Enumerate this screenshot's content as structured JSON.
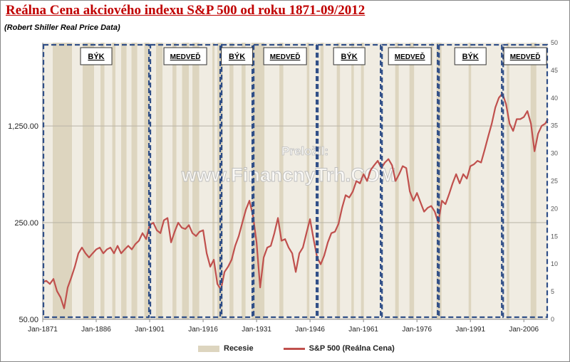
{
  "title": "Reálna Cena akciového indexu S&P 500 od roku 1871-09/2012",
  "subtitle": "(Robert Shiller Real Price Data)",
  "watermark": {
    "line1": "Preložil:",
    "line2": "www.FinancnyTrh.COM"
  },
  "colors": {
    "series": "#c0504d",
    "recession": "#ddd5bf",
    "plot_bg": "#f0ece2",
    "dash_box": "#2f4e87",
    "title": "#c00000"
  },
  "chart_data": {
    "type": "line",
    "title": "Reálna Cena akciového indexu S&P 500 od roku 1871-09/2012",
    "y_scale": "log",
    "ylim": [
      50,
      5000
    ],
    "yticks": [
      {
        "value": 50,
        "label": "50.00"
      },
      {
        "value": 250,
        "label": "250.00"
      },
      {
        "value": 1250,
        "label": "1,250.00"
      }
    ],
    "xlim": [
      1871,
      2012.75
    ],
    "xticks": [
      {
        "value": 1871,
        "label": "Jan-1871"
      },
      {
        "value": 1886,
        "label": "Jan-1886"
      },
      {
        "value": 1901,
        "label": "Jan-1901"
      },
      {
        "value": 1916,
        "label": "Jan-1916"
      },
      {
        "value": 1931,
        "label": "Jan-1931"
      },
      {
        "value": 1946,
        "label": "Jan-1946"
      },
      {
        "value": 1961,
        "label": "Jan-1961"
      },
      {
        "value": 1976,
        "label": "Jan-1976"
      },
      {
        "value": 1991,
        "label": "Jan-1991"
      },
      {
        "value": 2006,
        "label": "Jan-2006"
      }
    ],
    "y2lim": [
      0,
      50
    ],
    "y2ticks": [
      0,
      5,
      10,
      15,
      20,
      25,
      30,
      35,
      40,
      45,
      50
    ],
    "grid": "horizontal",
    "legend": "bottom",
    "legend_items": [
      "Recesie",
      "S&P 500  (Reálna Cena)"
    ],
    "series": [
      {
        "name": "S&P 500  (Reálna Cena)",
        "points": [
          [
            1871,
            93
          ],
          [
            1872,
            95
          ],
          [
            1873,
            90
          ],
          [
            1874,
            98
          ],
          [
            1875,
            80
          ],
          [
            1876,
            72
          ],
          [
            1877,
            60
          ],
          [
            1878,
            85
          ],
          [
            1879,
            100
          ],
          [
            1880,
            120
          ],
          [
            1881,
            150
          ],
          [
            1882,
            165
          ],
          [
            1883,
            150
          ],
          [
            1884,
            140
          ],
          [
            1885,
            150
          ],
          [
            1886,
            160
          ],
          [
            1887,
            165
          ],
          [
            1888,
            150
          ],
          [
            1889,
            160
          ],
          [
            1890,
            165
          ],
          [
            1891,
            150
          ],
          [
            1892,
            170
          ],
          [
            1893,
            150
          ],
          [
            1894,
            160
          ],
          [
            1895,
            170
          ],
          [
            1896,
            160
          ],
          [
            1897,
            175
          ],
          [
            1898,
            185
          ],
          [
            1899,
            210
          ],
          [
            1900,
            190
          ],
          [
            1901,
            240
          ],
          [
            1902,
            250
          ],
          [
            1903,
            220
          ],
          [
            1904,
            210
          ],
          [
            1905,
            260
          ],
          [
            1906,
            270
          ],
          [
            1907,
            180
          ],
          [
            1908,
            215
          ],
          [
            1909,
            250
          ],
          [
            1910,
            230
          ],
          [
            1911,
            225
          ],
          [
            1912,
            240
          ],
          [
            1913,
            210
          ],
          [
            1914,
            200
          ],
          [
            1915,
            215
          ],
          [
            1916,
            220
          ],
          [
            1917,
            150
          ],
          [
            1918,
            120
          ],
          [
            1919,
            135
          ],
          [
            1920,
            90
          ],
          [
            1921,
            82
          ],
          [
            1922,
            110
          ],
          [
            1923,
            120
          ],
          [
            1924,
            135
          ],
          [
            1925,
            170
          ],
          [
            1926,
            200
          ],
          [
            1927,
            250
          ],
          [
            1928,
            310
          ],
          [
            1929,
            360
          ],
          [
            1930,
            280
          ],
          [
            1931,
            180
          ],
          [
            1932,
            85
          ],
          [
            1933,
            140
          ],
          [
            1934,
            165
          ],
          [
            1935,
            170
          ],
          [
            1936,
            210
          ],
          [
            1937,
            270
          ],
          [
            1938,
            185
          ],
          [
            1939,
            190
          ],
          [
            1940,
            165
          ],
          [
            1941,
            150
          ],
          [
            1942,
            110
          ],
          [
            1943,
            150
          ],
          [
            1944,
            165
          ],
          [
            1945,
            210
          ],
          [
            1946,
            265
          ],
          [
            1947,
            190
          ],
          [
            1948,
            140
          ],
          [
            1949,
            125
          ],
          [
            1950,
            145
          ],
          [
            1951,
            180
          ],
          [
            1952,
            210
          ],
          [
            1953,
            215
          ],
          [
            1954,
            245
          ],
          [
            1955,
            320
          ],
          [
            1956,
            395
          ],
          [
            1957,
            380
          ],
          [
            1958,
            420
          ],
          [
            1959,
            500
          ],
          [
            1960,
            480
          ],
          [
            1961,
            560
          ],
          [
            1962,
            500
          ],
          [
            1963,
            600
          ],
          [
            1964,
            650
          ],
          [
            1965,
            700
          ],
          [
            1966,
            620
          ],
          [
            1967,
            680
          ],
          [
            1968,
            720
          ],
          [
            1969,
            650
          ],
          [
            1970,
            500
          ],
          [
            1971,
            560
          ],
          [
            1972,
            640
          ],
          [
            1973,
            620
          ],
          [
            1974,
            420
          ],
          [
            1975,
            360
          ],
          [
            1976,
            410
          ],
          [
            1977,
            350
          ],
          [
            1978,
            300
          ],
          [
            1979,
            320
          ],
          [
            1980,
            330
          ],
          [
            1981,
            300
          ],
          [
            1982,
            250
          ],
          [
            1983,
            360
          ],
          [
            1984,
            340
          ],
          [
            1985,
            400
          ],
          [
            1986,
            480
          ],
          [
            1987,
            560
          ],
          [
            1988,
            480
          ],
          [
            1989,
            560
          ],
          [
            1990,
            520
          ],
          [
            1991,
            640
          ],
          [
            1992,
            660
          ],
          [
            1993,
            700
          ],
          [
            1994,
            680
          ],
          [
            1995,
            840
          ],
          [
            1996,
            1050
          ],
          [
            1997,
            1300
          ],
          [
            1998,
            1700
          ],
          [
            1999,
            2000
          ],
          [
            2000,
            2150
          ],
          [
            2001,
            1800
          ],
          [
            2002,
            1300
          ],
          [
            2003,
            1150
          ],
          [
            2004,
            1400
          ],
          [
            2005,
            1400
          ],
          [
            2006,
            1450
          ],
          [
            2007,
            1600
          ],
          [
            2008,
            1300
          ],
          [
            2009,
            820
          ],
          [
            2010,
            1100
          ],
          [
            2011,
            1250
          ],
          [
            2012,
            1300
          ],
          [
            2012.75,
            1400
          ]
        ]
      }
    ],
    "recessions": [
      [
        1873.8,
        1879.2
      ],
      [
        1882.2,
        1885.4
      ],
      [
        1887.2,
        1888.3
      ],
      [
        1890.5,
        1891.4
      ],
      [
        1893.0,
        1894.5
      ],
      [
        1895.9,
        1897.5
      ],
      [
        1899.5,
        1900.9
      ],
      [
        1902.8,
        1904.6
      ],
      [
        1907.4,
        1908.5
      ],
      [
        1910.1,
        1912.0
      ],
      [
        1913.0,
        1914.9
      ],
      [
        1918.6,
        1919.2
      ],
      [
        1920.0,
        1921.5
      ],
      [
        1923.4,
        1924.5
      ],
      [
        1926.8,
        1927.9
      ],
      [
        1929.6,
        1933.2
      ],
      [
        1937.4,
        1938.5
      ],
      [
        1945.1,
        1945.8
      ],
      [
        1948.9,
        1949.8
      ],
      [
        1953.5,
        1954.4
      ],
      [
        1957.6,
        1958.3
      ],
      [
        1960.3,
        1961.1
      ],
      [
        1969.9,
        1970.9
      ],
      [
        1973.9,
        1975.2
      ],
      [
        1980.0,
        1980.5
      ],
      [
        1981.5,
        1982.9
      ],
      [
        1990.5,
        1991.2
      ],
      [
        2001.2,
        2001.9
      ],
      [
        2007.9,
        2009.5
      ]
    ],
    "phases": [
      {
        "label": "BÝK",
        "start": 1871,
        "end": 1901
      },
      {
        "label": "MEDVEĎ",
        "start": 1901,
        "end": 1921
      },
      {
        "label": "BÝK",
        "start": 1921,
        "end": 1930
      },
      {
        "label": "MEDVEĎ",
        "start": 1930,
        "end": 1948
      },
      {
        "label": "BÝK",
        "start": 1948,
        "end": 1966
      },
      {
        "label": "MEDVEĎ",
        "start": 1966,
        "end": 1982
      },
      {
        "label": "BÝK",
        "start": 1982,
        "end": 2000
      },
      {
        "label": "MEDVEĎ",
        "start": 2000,
        "end": 2012.75
      }
    ]
  }
}
